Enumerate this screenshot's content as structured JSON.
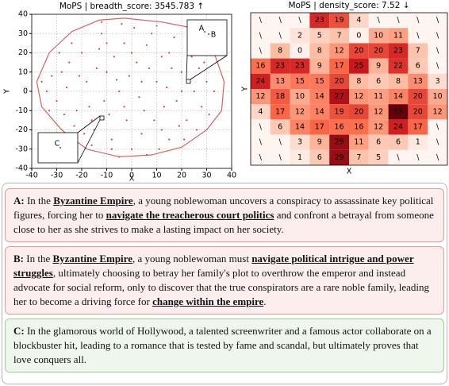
{
  "chart_data": [
    {
      "type": "scatter",
      "title": "MoPS | breadth_score: 3545.783 ↑",
      "xlabel": "X",
      "ylabel": "Y",
      "xlim": [
        -40,
        40
      ],
      "ylim": [
        -40,
        40
      ],
      "xticks": [
        -40,
        -30,
        -20,
        -10,
        0,
        10,
        20,
        30,
        40
      ],
      "yticks": [
        -40,
        -30,
        -20,
        -10,
        0,
        10,
        20,
        30,
        40
      ],
      "grid": true,
      "color": "#c44e52",
      "hull_color": "#d9625e",
      "x": [
        -30,
        -28,
        -25,
        -22,
        -20,
        -18,
        -15,
        -12,
        -10,
        -8,
        -5,
        -3,
        0,
        2,
        5,
        8,
        10,
        12,
        15,
        18,
        20,
        22,
        25,
        28,
        30,
        -34,
        -32,
        -27,
        -24,
        -19,
        -14,
        -11,
        -7,
        -2,
        1,
        4,
        7,
        11,
        14,
        17,
        21,
        24,
        27,
        31,
        -29,
        -26,
        -23,
        -17,
        -13,
        -9,
        -6,
        -1,
        3,
        6,
        9,
        13,
        16,
        19,
        23,
        26,
        -12,
        -4,
        10,
        -5,
        6,
        -16,
        -33,
        -36,
        33,
        29,
        -21,
        -16,
        -3,
        0,
        4,
        12,
        15,
        20,
        -8,
        -10
      ],
      "y": [
        -5,
        10,
        15,
        -10,
        20,
        5,
        -20,
        30,
        10,
        -25,
        0,
        25,
        -30,
        15,
        -10,
        30,
        5,
        -20,
        20,
        -5,
        10,
        -15,
        0,
        -8,
        5,
        0,
        8,
        -12,
        25,
        -22,
        12,
        -5,
        18,
        -15,
        33,
        -22,
        12,
        -30,
        2,
        28,
        -25,
        18,
        12,
        -12,
        20,
        2,
        -18,
        -8,
        22,
        -12,
        6,
        8,
        -3,
        24,
        -15,
        -8,
        12,
        -18,
        25,
        -20,
        36,
        35,
        34,
        -34,
        -33,
        -28,
        -10,
        5,
        0,
        15,
        8,
        -15,
        -8,
        20,
        5,
        18,
        -25,
        0,
        -30,
        25
      ],
      "hull": {
        "x": [
          -13,
          -3,
          12,
          24,
          33,
          37,
          36,
          30,
          20,
          8,
          -5,
          -18,
          -28,
          -36,
          -38,
          -33,
          -24
        ],
        "y": [
          37,
          38,
          36,
          33,
          20,
          5,
          -10,
          -20,
          -29,
          -33,
          -34,
          -30,
          -20,
          -8,
          5,
          20,
          31
        ]
      },
      "annotations": [
        "A",
        "B",
        "C"
      ]
    },
    {
      "type": "heatmap",
      "title": "MoPS | density_score: 7.52 ↓",
      "xlabel": "X",
      "ylabel": "Y",
      "colormap": "Reds",
      "null_label": "\\",
      "values": [
        [
          null,
          null,
          null,
          23,
          19,
          4,
          null,
          null,
          null,
          null
        ],
        [
          null,
          null,
          2,
          5,
          7,
          0,
          10,
          11,
          null,
          null
        ],
        [
          null,
          8,
          0,
          8,
          12,
          20,
          20,
          23,
          7,
          null
        ],
        [
          16,
          23,
          23,
          9,
          17,
          25,
          9,
          22,
          6,
          null
        ],
        [
          24,
          13,
          15,
          15,
          20,
          8,
          6,
          8,
          13,
          3
        ],
        [
          12,
          18,
          10,
          14,
          27,
          12,
          11,
          14,
          20,
          10
        ],
        [
          4,
          17,
          12,
          14,
          19,
          20,
          12,
          33,
          20,
          12
        ],
        [
          null,
          6,
          14,
          17,
          16,
          16,
          12,
          24,
          17,
          null
        ],
        [
          null,
          null,
          3,
          9,
          29,
          11,
          6,
          6,
          1,
          null
        ],
        [
          null,
          null,
          1,
          6,
          29,
          7,
          5,
          null,
          null,
          null
        ]
      ]
    }
  ],
  "cards": [
    {
      "label": "A:",
      "tone": "red",
      "segments": [
        {
          "text": " In the "
        },
        {
          "text": "Byzantine Empire",
          "emphasis": true
        },
        {
          "text": ", a young noblewoman uncovers a conspiracy to assassinate key political figures, forcing her to "
        },
        {
          "text": "navigate the treacherous court politics",
          "emphasis": true
        },
        {
          "text": " and confront a betrayal from someone close to her as she strives to make a lasting impact on her society."
        }
      ]
    },
    {
      "label": "B:",
      "tone": "red",
      "segments": [
        {
          "text": " In the "
        },
        {
          "text": "Byzantine Empire",
          "emphasis": true
        },
        {
          "text": ", a young noblewoman must "
        },
        {
          "text": "navigate political intrigue and power struggles",
          "emphasis": true
        },
        {
          "text": ", ultimately choosing to betray her family's plot to overthrow the emperor and instead advocate for social reform, only to discover that the true conspirators are a rare noble family, leading her to become a driving force for "
        },
        {
          "text": "change within the empire",
          "emphasis": true
        },
        {
          "text": "."
        }
      ]
    },
    {
      "label": "C:",
      "tone": "green",
      "segments": [
        {
          "text": " In the glamorous world of Hollywood, a talented screenwriter and a famous actor collaborate on a blockbuster hit, leading to a romance that is tested by fame and scandal, but ultimately proves that love conquers all."
        }
      ]
    }
  ]
}
